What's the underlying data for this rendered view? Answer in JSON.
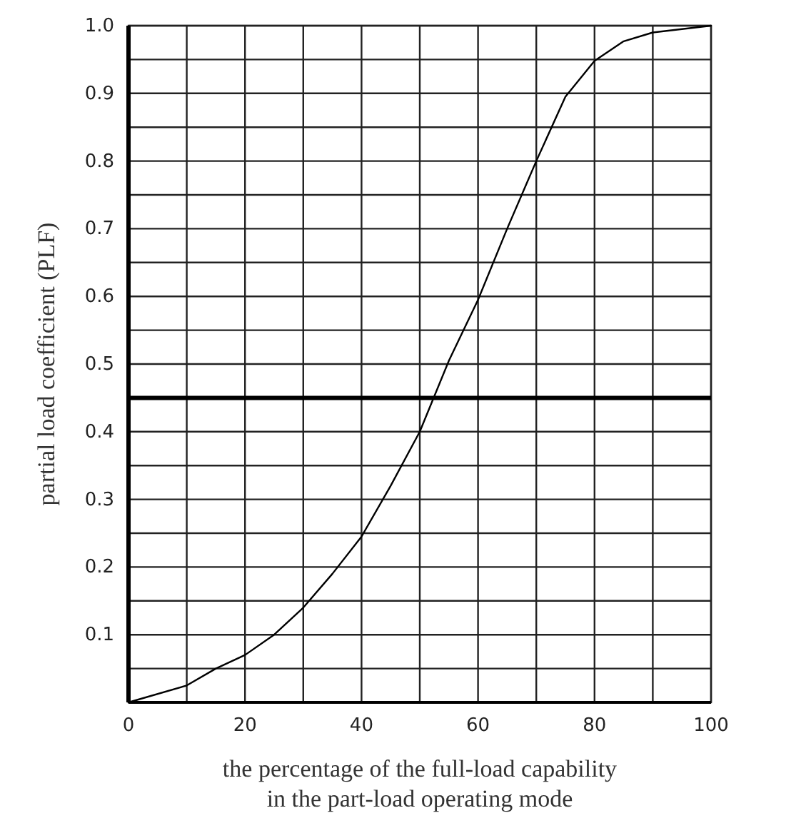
{
  "chart_data": {
    "type": "line",
    "xlabel": "the percentage of the full-load capability\nin the part-load operating mode",
    "ylabel": "partial load coefficient (PLF)",
    "x": [
      0,
      10,
      15,
      20,
      25,
      30,
      35,
      40,
      45,
      50,
      55,
      60,
      65,
      70,
      75,
      80,
      85,
      90,
      100
    ],
    "series": [
      {
        "color": "#000000",
        "values": [
          0,
          0.025,
          0.05,
          0.07,
          0.1,
          0.14,
          0.19,
          0.245,
          0.32,
          0.4,
          0.505,
          0.595,
          0.7,
          0.8,
          0.895,
          0.948,
          0.977,
          0.99,
          1.0
        ]
      }
    ],
    "xlim": [
      0,
      100
    ],
    "ylim": [
      0,
      1
    ],
    "xticks": [
      0,
      {
        "value": 10,
        "label": null
      },
      20,
      {
        "value": 30,
        "label": null
      },
      40,
      {
        "value": 50,
        "label": null
      },
      60,
      {
        "value": 70,
        "label": null
      },
      80,
      {
        "value": 90,
        "label": null
      },
      100
    ],
    "yticks": [
      {
        "value": 0,
        "label": null
      },
      {
        "value": 0.05,
        "label": null
      },
      0.1,
      {
        "value": 0.15,
        "label": null
      },
      0.2,
      {
        "value": 0.25,
        "label": null
      },
      0.3,
      {
        "value": 0.35,
        "label": null
      },
      0.4,
      {
        "value": 0.45,
        "label": null
      },
      0.5,
      {
        "value": 0.55,
        "label": null
      },
      0.6,
      {
        "value": 0.65,
        "label": null
      },
      0.7,
      {
        "value": 0.75,
        "label": null
      },
      0.8,
      {
        "value": 0.85,
        "label": null
      },
      0.9,
      {
        "value": 0.95,
        "label": null
      },
      {
        "value": 1,
        "label": "1.0"
      }
    ],
    "grid": true,
    "marker": "none",
    "line_style": "solid",
    "ref_lines": [
      {
        "axis": "y",
        "value": 0.45,
        "color": "#000000"
      }
    ]
  }
}
